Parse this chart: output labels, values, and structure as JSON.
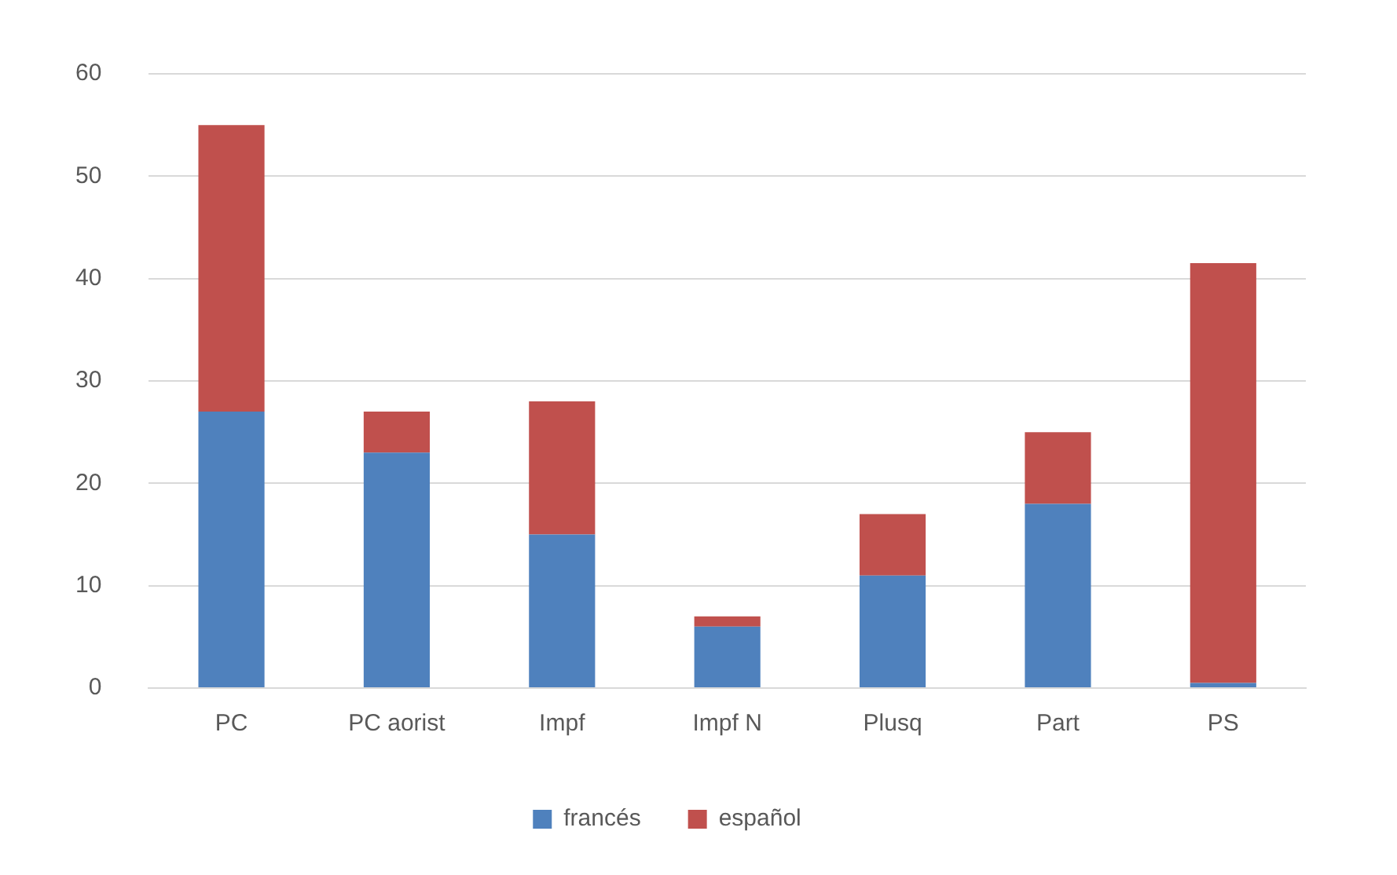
{
  "chart_data": {
    "type": "bar",
    "stacked": true,
    "categories": [
      "PC",
      "PC aorist",
      "Impf",
      "Impf N",
      "Plusq",
      "Part",
      "PS"
    ],
    "series": [
      {
        "name": "francés",
        "color": "#4f81bd",
        "values": [
          27,
          23,
          15,
          6,
          11,
          18,
          0.5
        ]
      },
      {
        "name": "español",
        "color": "#c0504d",
        "values": [
          28,
          4,
          13,
          1,
          6,
          7,
          41
        ]
      }
    ],
    "ylim": [
      0,
      60
    ],
    "yticks": [
      0,
      10,
      20,
      30,
      40,
      50,
      60
    ],
    "grid": "y",
    "legend": "bottom"
  }
}
